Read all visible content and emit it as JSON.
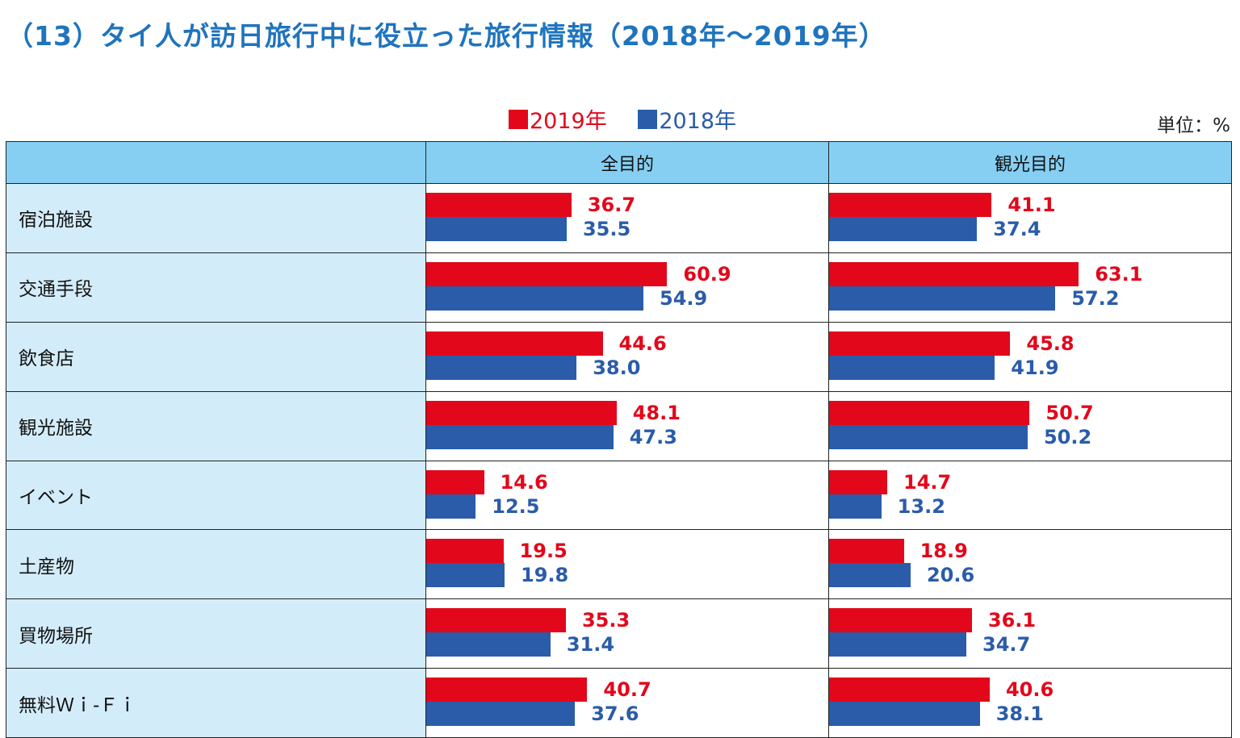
{
  "title": "（13）タイ人が訪日旅行中に役立った旅行情報（2018年～2019年）",
  "unit_label": "単位：%",
  "colors": {
    "title": "#1f74bd",
    "y2019": "#e3071b",
    "y2018": "#2a5ca9",
    "header_bg": "#86cff3",
    "label_bg": "#d3ecf9"
  },
  "chart_data": {
    "type": "bar",
    "orientation": "horizontal",
    "legend": [
      "2019年",
      "2018年"
    ],
    "legend_position": "top-center",
    "columns": [
      "全目的",
      "観光目的"
    ],
    "categories": [
      "宿泊施設",
      "交通手段",
      "飲食店",
      "観光施設",
      "イベント",
      "土産物",
      "買物場所",
      "無料Ｗｉ-Ｆｉ"
    ],
    "xlim": [
      0,
      100
    ],
    "panels": [
      {
        "name": "全目的",
        "series": [
          {
            "name": "2019年",
            "values": [
              36.7,
              60.9,
              44.6,
              48.1,
              14.6,
              19.5,
              35.3,
              40.7
            ],
            "labels": [
              "36.7",
              "60.9",
              "44.6",
              "48.1",
              "14.6",
              "19.5",
              "35.3",
              "40.7"
            ]
          },
          {
            "name": "2018年",
            "values": [
              35.5,
              54.9,
              38.0,
              47.3,
              12.5,
              19.8,
              31.4,
              37.6
            ],
            "labels": [
              "35.5",
              "54.9",
              "38.0",
              "47.3",
              "12.5",
              "19.8",
              "31.4",
              "37.6"
            ]
          }
        ]
      },
      {
        "name": "観光目的",
        "series": [
          {
            "name": "2019年",
            "values": [
              41.1,
              63.1,
              45.8,
              50.7,
              14.7,
              18.9,
              36.1,
              40.6
            ],
            "labels": [
              "41.1",
              "63.1",
              "45.8",
              "50.7",
              "14.7",
              "18.9",
              "36.1",
              "40.6"
            ]
          },
          {
            "name": "2018年",
            "values": [
              37.4,
              57.2,
              41.9,
              50.2,
              13.2,
              20.6,
              34.7,
              38.1
            ],
            "labels": [
              "37.4",
              "57.2",
              "41.9",
              "50.2",
              "13.2",
              "20.6",
              "34.7",
              "38.1"
            ]
          }
        ]
      }
    ]
  }
}
